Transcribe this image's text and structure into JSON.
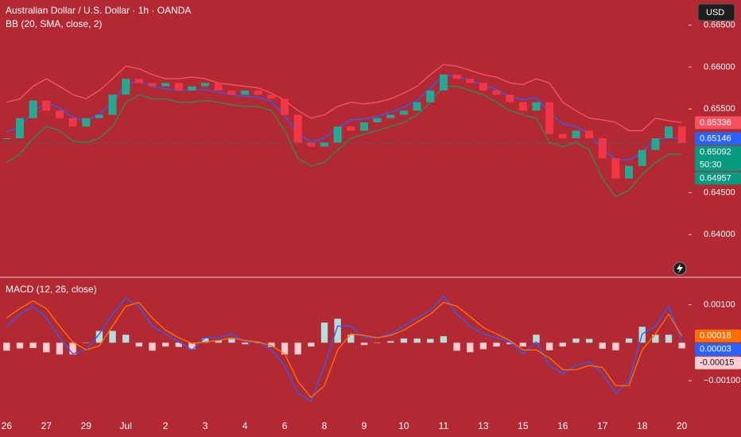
{
  "header": {
    "currency": "USD"
  },
  "chart_data": [
    {
      "type": "candlestick",
      "title": "Australian Dollar / U.S. Dollar · 1h · OANDA",
      "subtitle": "BB (20, SMA, close, 2)",
      "countdown": "50:30",
      "close": [
        0.6515,
        0.6539,
        0.656,
        0.6548,
        0.6539,
        0.6529,
        0.6539,
        0.6543,
        0.6567,
        0.6586,
        0.6581,
        0.6577,
        0.6581,
        0.6572,
        0.6577,
        0.6581,
        0.6572,
        0.6567,
        0.6572,
        0.6567,
        0.6562,
        0.6543,
        0.651,
        0.6505,
        0.651,
        0.6529,
        0.6524,
        0.6534,
        0.6539,
        0.6543,
        0.6548,
        0.6558,
        0.6572,
        0.6591,
        0.6586,
        0.6581,
        0.6572,
        0.6567,
        0.6558,
        0.6548,
        0.6558,
        0.652,
        0.6515,
        0.6524,
        0.6515,
        0.6491,
        0.6467,
        0.6482,
        0.6501,
        0.6515,
        0.6529,
        0.65092
      ],
      "bb_upper": [
        0.6558,
        0.6562,
        0.6577,
        0.6586,
        0.6577,
        0.6567,
        0.6562,
        0.6572,
        0.6586,
        0.6601,
        0.6598,
        0.6591,
        0.6586,
        0.6586,
        0.6588,
        0.6586,
        0.6581,
        0.6579,
        0.6577,
        0.6575,
        0.6569,
        0.656,
        0.6548,
        0.6539,
        0.6543,
        0.6553,
        0.6558,
        0.6556,
        0.6558,
        0.6562,
        0.6569,
        0.6577,
        0.6591,
        0.6603,
        0.6601,
        0.6596,
        0.6591,
        0.6588,
        0.6581,
        0.6579,
        0.6586,
        0.6581,
        0.6558,
        0.6548,
        0.6539,
        0.6537,
        0.6534,
        0.6524,
        0.6524,
        0.6539,
        0.6536,
        0.65336
      ],
      "bb_basis": [
        0.6522,
        0.6529,
        0.6546,
        0.6558,
        0.6551,
        0.654,
        0.6536,
        0.6544,
        0.6558,
        0.658,
        0.6583,
        0.6577,
        0.6574,
        0.6572,
        0.6573,
        0.6573,
        0.657,
        0.6567,
        0.6565,
        0.6564,
        0.6559,
        0.6542,
        0.652,
        0.6511,
        0.6515,
        0.6527,
        0.6537,
        0.6538,
        0.6541,
        0.6546,
        0.6552,
        0.656,
        0.6575,
        0.659,
        0.6589,
        0.6584,
        0.6579,
        0.6573,
        0.6565,
        0.6561,
        0.6563,
        0.6546,
        0.6532,
        0.6529,
        0.652,
        0.6502,
        0.649,
        0.6489,
        0.6498,
        0.6513,
        0.6516,
        0.65146
      ],
      "bb_lower": [
        0.6486,
        0.6496,
        0.6515,
        0.6529,
        0.6524,
        0.6512,
        0.651,
        0.6515,
        0.6529,
        0.6558,
        0.6567,
        0.6562,
        0.6562,
        0.6558,
        0.6558,
        0.656,
        0.6558,
        0.6555,
        0.6553,
        0.6553,
        0.6548,
        0.6524,
        0.6491,
        0.6482,
        0.6486,
        0.6501,
        0.6515,
        0.652,
        0.6524,
        0.6529,
        0.6534,
        0.6543,
        0.6558,
        0.6577,
        0.6577,
        0.6572,
        0.6567,
        0.6558,
        0.6548,
        0.6543,
        0.6539,
        0.651,
        0.6505,
        0.651,
        0.6501,
        0.6467,
        0.6445,
        0.6453,
        0.6472,
        0.6486,
        0.6496,
        0.64957
      ],
      "colors": {
        "up": "#22ab94",
        "down": "#f23645",
        "bb_upper": "#f7525f",
        "bb_basis": "#2962ff",
        "bb_lower": "#2e8b57",
        "close_tag": "#089981",
        "lower_tag": "#089981"
      },
      "ylim": [
        0.635,
        0.668
      ],
      "yticks": [
        {
          "value": 0.665,
          "label": "0.66500"
        },
        {
          "value": 0.66,
          "label": "0.66000"
        },
        {
          "value": 0.655,
          "label": "0.65500"
        },
        {
          "value": 0.645,
          "label": "0.64500"
        },
        {
          "value": 0.64,
          "label": "0.64000"
        }
      ],
      "grid": false
    },
    {
      "type": "macd",
      "title": "MACD (12, 26, close)",
      "categories": [
        "26",
        null,
        null,
        "27",
        null,
        null,
        "29",
        null,
        null,
        "Jul",
        null,
        null,
        "2",
        null,
        null,
        "3",
        null,
        null,
        "4",
        null,
        null,
        "6",
        null,
        null,
        "8",
        null,
        null,
        "9",
        null,
        null,
        "10",
        null,
        null,
        "11",
        null,
        null,
        "13",
        null,
        null,
        "15",
        null,
        null,
        "16",
        null,
        null,
        "17",
        null,
        null,
        "18",
        null,
        null,
        "20"
      ],
      "macd": [
        0.00044,
        0.00075,
        0.00096,
        0.00065,
        0.00013,
        -0.00029,
        -0.00019,
        0.00023,
        0.00075,
        0.00117,
        0.00096,
        0.00044,
        0.00023,
        2e-05,
        -0.00019,
        0.00013,
        0.00013,
        0.00023,
        2e-05,
        2e-05,
        -0.00019,
        -0.0006,
        -0.00133,
        -0.00154,
        -0.0006,
        0.00044,
        0.00044,
        0.00013,
        0.00013,
        0.00023,
        0.00044,
        0.00065,
        0.00085,
        0.00123,
        0.00075,
        0.00044,
        0.00023,
        0.00013,
        2e-05,
        -0.00029,
        2e-05,
        -0.0006,
        -0.00081,
        -0.0006,
        -0.0005,
        -0.00081,
        -0.00133,
        -0.00102,
        0.00023,
        0.00044,
        0.00096,
        3e-05
      ],
      "signal": [
        0.00065,
        0.0009,
        0.0011,
        0.0009,
        0.00044,
        2e-05,
        -0.00019,
        -8e-05,
        0.00044,
        0.00096,
        0.00106,
        0.00065,
        0.00033,
        0.00013,
        -2e-05,
        2e-05,
        6e-05,
        0.00013,
        6e-05,
        2e-05,
        -8e-05,
        -0.00029,
        -0.00102,
        -0.00144,
        -0.00113,
        -0.00019,
        0.00023,
        0.00019,
        0.00013,
        0.00019,
        0.00033,
        0.00054,
        0.00075,
        0.00106,
        0.00096,
        0.00069,
        0.0004,
        0.00023,
        6e-05,
        -0.00019,
        -0.00019,
        -0.0004,
        -0.00071,
        -0.00071,
        -0.0006,
        -0.00065,
        -0.00113,
        -0.00113,
        -0.00019,
        0.00023,
        0.00075,
        0.00018
      ],
      "histogram": [
        -0.00021,
        -0.00015,
        -0.00014,
        -0.00025,
        -0.00031,
        -0.00031,
        0,
        0.00031,
        0.00031,
        0.00021,
        -0.0001,
        -0.00021,
        -0.0001,
        -0.00011,
        -0.00017,
        0.00011,
        7e-05,
        0.0001,
        -4e-05,
        0,
        -0.00011,
        -0.00031,
        -0.00031,
        -0.0001,
        0.00053,
        0.00063,
        0.00021,
        -6e-05,
        0,
        4e-05,
        0.00011,
        0.00011,
        0.0001,
        0.00017,
        -0.00021,
        -0.00025,
        -0.00017,
        -0.0001,
        -4e-05,
        -0.0001,
        0.00021,
        -0.0002,
        -0.0001,
        0.00011,
        0.0001,
        -0.00016,
        -0.0002,
        0.00011,
        0.00042,
        0.00021,
        0.00021,
        -0.00015
      ],
      "colors": {
        "macd": "#2962ff",
        "signal": "#ff6d00",
        "hist_up": "#b2dfdb",
        "hist_down": "#ffcdd2"
      },
      "ylim": [
        -0.002,
        0.0017
      ],
      "yticks": [
        {
          "value": 0.001,
          "label": "0.00100"
        },
        {
          "value": -0.001,
          "label": "−0.00100"
        }
      ],
      "grid": false
    }
  ]
}
